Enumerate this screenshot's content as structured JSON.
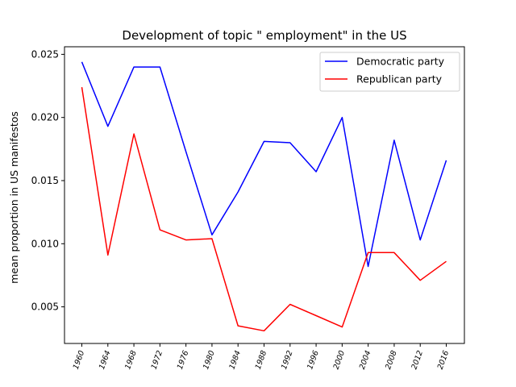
{
  "chart_data": {
    "type": "line",
    "title": "Development of topic \" employment\" in the US",
    "xlabel": "",
    "ylabel": "mean proportion in US manifestos",
    "categories": [
      "1960",
      "1964",
      "1968",
      "1972",
      "1976",
      "1980",
      "1984",
      "1988",
      "1992",
      "1996",
      "2000",
      "2004",
      "2008",
      "2012",
      "2016"
    ],
    "x": [
      1960,
      1964,
      1968,
      1972,
      1976,
      1980,
      1984,
      1988,
      1992,
      1996,
      2000,
      2004,
      2008,
      2012,
      2016
    ],
    "yticks": [
      "0.005",
      "0.010",
      "0.015",
      "0.020",
      "0.025"
    ],
    "ylim": [
      0.0021,
      0.0256
    ],
    "grid": false,
    "legend_position": "upper right",
    "series": [
      {
        "name": "Democratic party",
        "color": "#0000ff",
        "values": [
          0.0244,
          0.0193,
          0.024,
          0.024,
          0.0173,
          0.0107,
          0.0141,
          0.0181,
          0.018,
          0.0157,
          0.02,
          0.0082,
          0.0182,
          0.0103,
          0.0166
        ]
      },
      {
        "name": "Republican party",
        "color": "#ff0000",
        "values": [
          0.0224,
          0.0091,
          0.0187,
          0.0111,
          0.0103,
          0.0104,
          0.0035,
          0.0031,
          0.0052,
          0.0043,
          0.0034,
          0.0093,
          0.0093,
          0.0071,
          0.0086
        ]
      }
    ]
  }
}
